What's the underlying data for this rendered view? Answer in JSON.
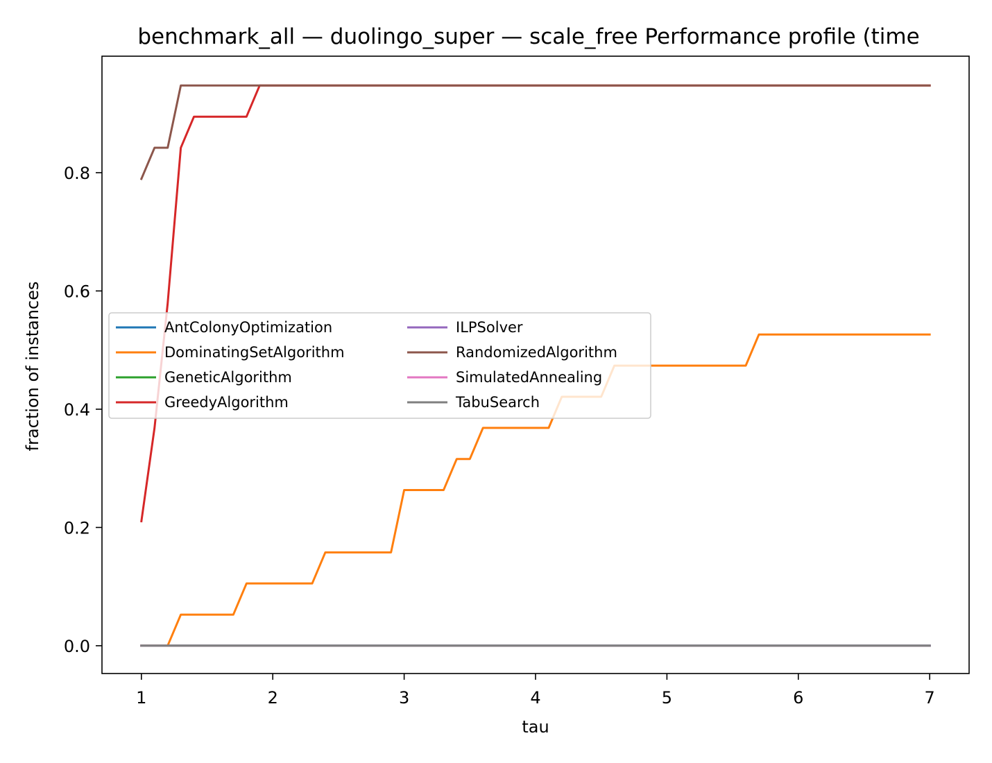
{
  "chart_data": {
    "type": "line",
    "title": "benchmark_all — duolingo_super — scale_free Performance profile (time",
    "xlabel": "tau",
    "ylabel": "fraction of instances",
    "xlim": [
      0.7,
      7.3
    ],
    "ylim": [
      -0.047,
      0.997
    ],
    "xticks": [
      "1",
      "2",
      "3",
      "4",
      "5",
      "6",
      "7"
    ],
    "yticks": [
      "0.0",
      "0.2",
      "0.4",
      "0.6",
      "0.8"
    ],
    "grid": false,
    "legend_placement": "center-left",
    "legend_columns": 2,
    "x": [
      1.0,
      1.1,
      1.2,
      1.3,
      1.4,
      1.5,
      1.6,
      1.7,
      1.8,
      1.9,
      2.0,
      2.1,
      2.2,
      2.3,
      2.4,
      2.5,
      2.6,
      2.7,
      2.8,
      2.9,
      3.0,
      3.1,
      3.2,
      3.3,
      3.4,
      3.5,
      3.6,
      3.7,
      3.8,
      3.9,
      4.0,
      4.1,
      4.2,
      4.3,
      4.4,
      4.5,
      4.6,
      4.7,
      4.8,
      4.9,
      5.0,
      5.1,
      5.2,
      5.3,
      5.4,
      5.5,
      5.6,
      5.7,
      5.8,
      5.9,
      6.0,
      6.1,
      6.2,
      6.3,
      6.4,
      6.5,
      6.6,
      6.7,
      6.8,
      6.9,
      7.0
    ],
    "series": [
      {
        "name": "AntColonyOptimization",
        "color": "#1f77b4",
        "values": [
          0,
          0,
          0,
          0,
          0,
          0,
          0,
          0,
          0,
          0,
          0,
          0,
          0,
          0,
          0,
          0,
          0,
          0,
          0,
          0,
          0,
          0,
          0,
          0,
          0,
          0,
          0,
          0,
          0,
          0,
          0,
          0,
          0,
          0,
          0,
          0,
          0,
          0,
          0,
          0,
          0,
          0,
          0,
          0,
          0,
          0,
          0,
          0,
          0,
          0,
          0,
          0,
          0,
          0,
          0,
          0,
          0,
          0,
          0,
          0,
          0
        ]
      },
      {
        "name": "DominatingSetAlgorithm",
        "color": "#ff7f0e",
        "values": [
          0,
          0,
          0,
          0.0526,
          0.0526,
          0.0526,
          0.0526,
          0.0526,
          0.1053,
          0.1053,
          0.1053,
          0.1053,
          0.1053,
          0.1053,
          0.1579,
          0.1579,
          0.1579,
          0.1579,
          0.1579,
          0.1579,
          0.2632,
          0.2632,
          0.2632,
          0.2632,
          0.3158,
          0.3158,
          0.3684,
          0.3684,
          0.3684,
          0.3684,
          0.3684,
          0.3684,
          0.4211,
          0.4211,
          0.4211,
          0.4211,
          0.4737,
          0.4737,
          0.4737,
          0.4737,
          0.4737,
          0.4737,
          0.4737,
          0.4737,
          0.4737,
          0.4737,
          0.4737,
          0.5263,
          0.5263,
          0.5263,
          0.5263,
          0.5263,
          0.5263,
          0.5263,
          0.5263,
          0.5263,
          0.5263,
          0.5263,
          0.5263,
          0.5263,
          0.5263
        ]
      },
      {
        "name": "GeneticAlgorithm",
        "color": "#2ca02c",
        "values": [
          0,
          0,
          0,
          0,
          0,
          0,
          0,
          0,
          0,
          0,
          0,
          0,
          0,
          0,
          0,
          0,
          0,
          0,
          0,
          0,
          0,
          0,
          0,
          0,
          0,
          0,
          0,
          0,
          0,
          0,
          0,
          0,
          0,
          0,
          0,
          0,
          0,
          0,
          0,
          0,
          0,
          0,
          0,
          0,
          0,
          0,
          0,
          0,
          0,
          0,
          0,
          0,
          0,
          0,
          0,
          0,
          0,
          0,
          0,
          0,
          0
        ]
      },
      {
        "name": "GreedyAlgorithm",
        "color": "#d62728",
        "values": [
          0.2105,
          0.3684,
          0.5789,
          0.8421,
          0.8947,
          0.8947,
          0.8947,
          0.8947,
          0.8947,
          0.9474,
          0.9474,
          0.9474,
          0.9474,
          0.9474,
          0.9474,
          0.9474,
          0.9474,
          0.9474,
          0.9474,
          0.9474,
          0.9474,
          0.9474,
          0.9474,
          0.9474,
          0.9474,
          0.9474,
          0.9474,
          0.9474,
          0.9474,
          0.9474,
          0.9474,
          0.9474,
          0.9474,
          0.9474,
          0.9474,
          0.9474,
          0.9474,
          0.9474,
          0.9474,
          0.9474,
          0.9474,
          0.9474,
          0.9474,
          0.9474,
          0.9474,
          0.9474,
          0.9474,
          0.9474,
          0.9474,
          0.9474,
          0.9474,
          0.9474,
          0.9474,
          0.9474,
          0.9474,
          0.9474,
          0.9474,
          0.9474,
          0.9474,
          0.9474,
          0.9474
        ]
      },
      {
        "name": "ILPSolver",
        "color": "#9467bd",
        "values": [
          0,
          0,
          0,
          0,
          0,
          0,
          0,
          0,
          0,
          0,
          0,
          0,
          0,
          0,
          0,
          0,
          0,
          0,
          0,
          0,
          0,
          0,
          0,
          0,
          0,
          0,
          0,
          0,
          0,
          0,
          0,
          0,
          0,
          0,
          0,
          0,
          0,
          0,
          0,
          0,
          0,
          0,
          0,
          0,
          0,
          0,
          0,
          0,
          0,
          0,
          0,
          0,
          0,
          0,
          0,
          0,
          0,
          0,
          0,
          0,
          0
        ]
      },
      {
        "name": "RandomizedAlgorithm",
        "color": "#8c564b",
        "values": [
          0.7895,
          0.8421,
          0.8421,
          0.9474,
          0.9474,
          0.9474,
          0.9474,
          0.9474,
          0.9474,
          0.9474,
          0.9474,
          0.9474,
          0.9474,
          0.9474,
          0.9474,
          0.9474,
          0.9474,
          0.9474,
          0.9474,
          0.9474,
          0.9474,
          0.9474,
          0.9474,
          0.9474,
          0.9474,
          0.9474,
          0.9474,
          0.9474,
          0.9474,
          0.9474,
          0.9474,
          0.9474,
          0.9474,
          0.9474,
          0.9474,
          0.9474,
          0.9474,
          0.9474,
          0.9474,
          0.9474,
          0.9474,
          0.9474,
          0.9474,
          0.9474,
          0.9474,
          0.9474,
          0.9474,
          0.9474,
          0.9474,
          0.9474,
          0.9474,
          0.9474,
          0.9474,
          0.9474,
          0.9474,
          0.9474,
          0.9474,
          0.9474,
          0.9474,
          0.9474,
          0.9474
        ]
      },
      {
        "name": "SimulatedAnnealing",
        "color": "#e377c2",
        "values": [
          0,
          0,
          0,
          0,
          0,
          0,
          0,
          0,
          0,
          0,
          0,
          0,
          0,
          0,
          0,
          0,
          0,
          0,
          0,
          0,
          0,
          0,
          0,
          0,
          0,
          0,
          0,
          0,
          0,
          0,
          0,
          0,
          0,
          0,
          0,
          0,
          0,
          0,
          0,
          0,
          0,
          0,
          0,
          0,
          0,
          0,
          0,
          0,
          0,
          0,
          0,
          0,
          0,
          0,
          0,
          0,
          0,
          0,
          0,
          0,
          0
        ]
      },
      {
        "name": "TabuSearch",
        "color": "#7f7f7f",
        "values": [
          0,
          0,
          0,
          0,
          0,
          0,
          0,
          0,
          0,
          0,
          0,
          0,
          0,
          0,
          0,
          0,
          0,
          0,
          0,
          0,
          0,
          0,
          0,
          0,
          0,
          0,
          0,
          0,
          0,
          0,
          0,
          0,
          0,
          0,
          0,
          0,
          0,
          0,
          0,
          0,
          0,
          0,
          0,
          0,
          0,
          0,
          0,
          0,
          0,
          0,
          0,
          0,
          0,
          0,
          0,
          0,
          0,
          0,
          0,
          0,
          0
        ]
      }
    ]
  }
}
